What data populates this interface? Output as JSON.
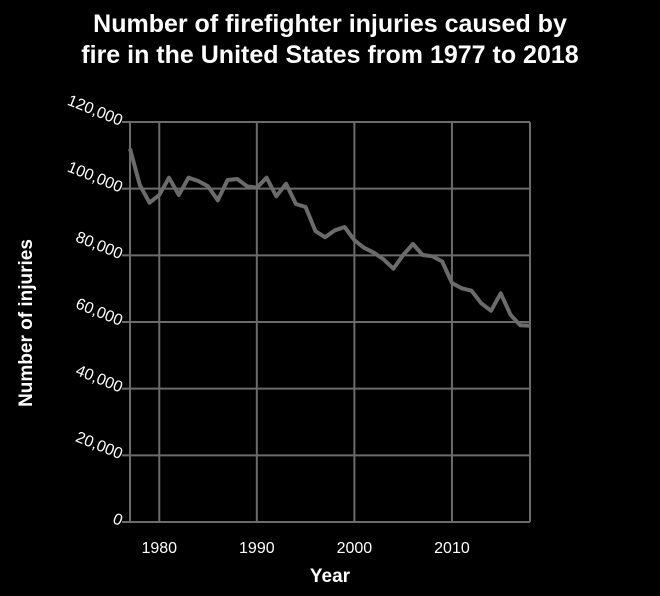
{
  "chart_data": {
    "type": "line",
    "title_lines": [
      "Number of firefighter injuries caused by",
      "fire in the United States from 1977 to 2018"
    ],
    "xlabel": "Year",
    "ylabel": "Number of injuries",
    "xlim": [
      1977,
      2018
    ],
    "ylim": [
      0,
      120000
    ],
    "xticks": [
      1980,
      1990,
      2000,
      2010
    ],
    "yticks": [
      0,
      20000,
      40000,
      60000,
      80000,
      100000,
      120000
    ],
    "ytick_labels": [
      "0",
      "20,000",
      "40,000",
      "60,000",
      "80,000",
      "100,000",
      "120,000"
    ],
    "grid": true,
    "line_color": "#6b6b6b",
    "background": "#000000",
    "x": [
      1977,
      1978,
      1979,
      1980,
      1981,
      1982,
      1983,
      1984,
      1985,
      1986,
      1987,
      1988,
      1989,
      1990,
      1991,
      1992,
      1993,
      1994,
      1995,
      1996,
      1997,
      1998,
      1999,
      2000,
      2001,
      2002,
      2003,
      2004,
      2005,
      2006,
      2007,
      2008,
      2009,
      2010,
      2011,
      2012,
      2013,
      2014,
      2015,
      2016,
      2017,
      2018
    ],
    "values": [
      112000,
      101100,
      95800,
      98100,
      103300,
      98100,
      103300,
      102300,
      100700,
      96500,
      102600,
      102900,
      100700,
      100300,
      103300,
      97700,
      101500,
      95400,
      94500,
      87300,
      85400,
      87500,
      88500,
      84550,
      82250,
      80800,
      78750,
      76000,
      80100,
      83400,
      80100,
      79700,
      78150,
      71700,
      70100,
      69400,
      65650,
      63350,
      68600,
      62200,
      59000,
      58850
    ]
  }
}
